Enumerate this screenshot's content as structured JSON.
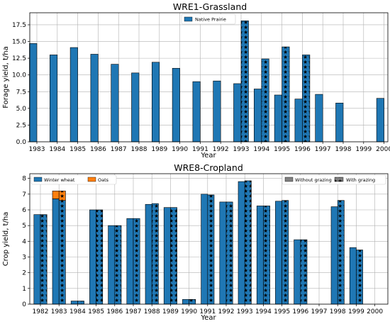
{
  "colors": {
    "blue": "#1f77b4",
    "orange": "#ff7f0e",
    "gray": "#808080",
    "frame": "#000000",
    "grid": "#b0b0b0"
  },
  "chart_data": [
    {
      "type": "bar",
      "title": "WRE1-Grassland",
      "xlabel": "Year",
      "ylabel": "Forage yield, t/ha",
      "ylim": [
        0,
        19.3
      ],
      "yticks": [
        "0.0",
        "2.5",
        "5.0",
        "7.5",
        "10.0",
        "12.5",
        "15.0",
        "17.5"
      ],
      "grid": true,
      "legend_placement": "top-center",
      "legend": [
        {
          "label": "Native Prairie",
          "color": "#1f77b4",
          "hatch": false
        }
      ],
      "categories": [
        "1983",
        "1984",
        "1985",
        "1986",
        "1987",
        "1988",
        "1989",
        "1990",
        "1991",
        "1992",
        "1993",
        "1994",
        "1995",
        "1996",
        "1997",
        "1998",
        "1999",
        "2000"
      ],
      "series": [
        {
          "name": "Native Prairie",
          "color": "#1f77b4",
          "hatch": false,
          "values": [
            14.7,
            13.0,
            14.1,
            13.1,
            11.6,
            10.3,
            11.9,
            11.0,
            9.0,
            9.1,
            8.7,
            7.9,
            7.0,
            6.4,
            7.1,
            5.8,
            null,
            6.5
          ]
        },
        {
          "name": "",
          "color": "#1f77b4",
          "hatch": true,
          "values": [
            null,
            null,
            null,
            null,
            null,
            null,
            null,
            null,
            null,
            null,
            18.1,
            12.4,
            14.2,
            13.0,
            null,
            null,
            null,
            null
          ]
        }
      ]
    },
    {
      "type": "bar",
      "title": "WRE8-Cropland",
      "xlabel": "Year",
      "ylabel": "Crop yield, t/ha",
      "ylim": [
        0,
        8.3
      ],
      "yticks": [
        "0",
        "1",
        "2",
        "3",
        "4",
        "5",
        "6",
        "7",
        "8"
      ],
      "grid": true,
      "legend_placement": "top",
      "legend": [
        {
          "label": "Winter wheat",
          "color": "#1f77b4",
          "hatch": false
        },
        {
          "label": "Oats",
          "color": "#ff7f0e",
          "hatch": false
        },
        {
          "label": "Without grazing",
          "color": "#808080",
          "hatch": false
        },
        {
          "label": "With grazing",
          "color": "#808080",
          "hatch": true
        }
      ],
      "categories": [
        "1982",
        "1983",
        "1984",
        "1985",
        "1986",
        "1987",
        "1988",
        "1989",
        "1990",
        "1991",
        "1992",
        "1993",
        "1994",
        "1995",
        "1996",
        "1997",
        "1998",
        "1999",
        "2000"
      ],
      "series": [
        {
          "name": "Winter wheat",
          "stack": "without",
          "color": "#1f77b4",
          "hatch": false,
          "values": [
            5.7,
            6.7,
            0.2,
            6.0,
            5.0,
            5.45,
            6.35,
            6.15,
            0.3,
            7.0,
            6.5,
            7.8,
            6.25,
            6.55,
            4.1,
            null,
            6.2,
            3.6,
            null
          ]
        },
        {
          "name": "Oats",
          "stack": "without",
          "color": "#ff7f0e",
          "hatch": false,
          "values": [
            null,
            0.5,
            null,
            null,
            null,
            null,
            null,
            null,
            null,
            null,
            null,
            null,
            null,
            null,
            null,
            null,
            null,
            null,
            null
          ]
        },
        {
          "name": "Winter wheat",
          "stack": "with",
          "color": "#1f77b4",
          "hatch": true,
          "values": [
            5.7,
            6.6,
            0.2,
            6.0,
            5.0,
            5.45,
            6.4,
            6.15,
            0.3,
            6.95,
            6.5,
            7.85,
            6.25,
            6.6,
            4.1,
            null,
            6.6,
            3.45,
            null
          ]
        },
        {
          "name": "Oats",
          "stack": "with",
          "color": "#ff7f0e",
          "hatch": true,
          "values": [
            null,
            0.6,
            null,
            null,
            null,
            null,
            null,
            null,
            null,
            null,
            null,
            null,
            null,
            null,
            null,
            null,
            null,
            null,
            null
          ]
        }
      ]
    }
  ]
}
